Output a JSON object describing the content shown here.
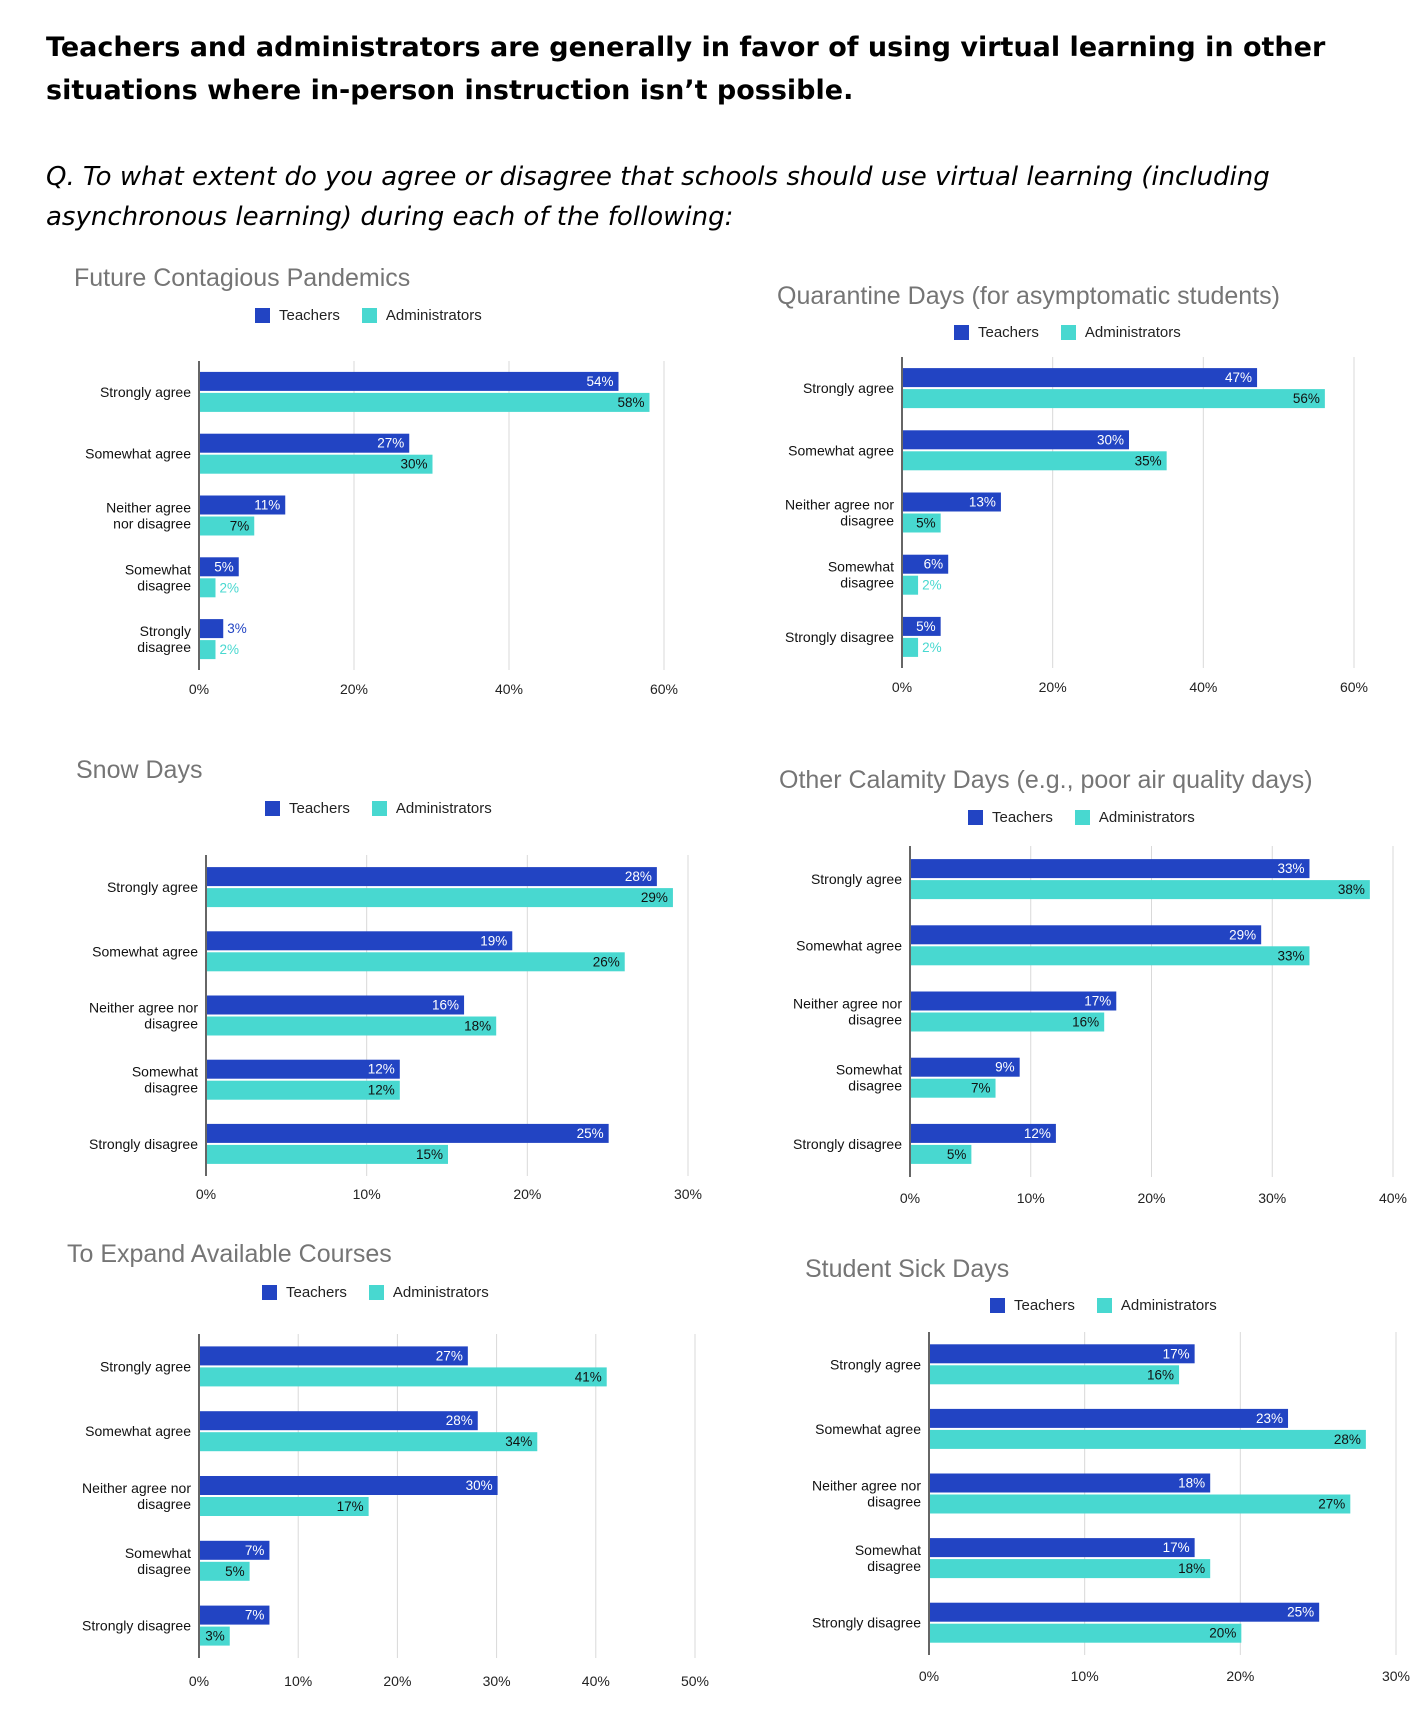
{
  "headline": "Teachers and administrators are generally in favor of using virtual learning in other situations where in-person instruction isn’t possible.",
  "question": "Q. To what extent do you agree or disagree that schools should use virtual learning (including asynchronous learning) during each of the following:",
  "colors": {
    "teachers": "#2244c3",
    "administrators": "#48d8d0",
    "grid": "#d9d9d9",
    "axis": "#333333"
  },
  "chart_data": [
    {
      "type": "bar",
      "orientation": "horizontal",
      "title": "Future Contagious Pandemics",
      "categories": [
        "Strongly agree",
        "Somewhat agree",
        "Neither agree nor disagree",
        "Somewhat disagree",
        "Strongly disagree"
      ],
      "category_lines": [
        [
          "Strongly agree"
        ],
        [
          "Somewhat agree"
        ],
        [
          "Neither agree",
          "nor disagree"
        ],
        [
          "Somewhat",
          "disagree"
        ],
        [
          "Strongly",
          "disagree"
        ]
      ],
      "series": [
        {
          "name": "Teachers",
          "values": [
            54,
            27,
            11,
            5,
            3
          ],
          "labels": [
            "54%",
            "27%",
            "11%",
            "5%",
            "3%"
          ]
        },
        {
          "name": "Administrators",
          "values": [
            58,
            30,
            7,
            2,
            2
          ],
          "labels": [
            "58%",
            "30%",
            "7%",
            "2%",
            "2%"
          ]
        }
      ],
      "xlim": [
        0,
        60
      ],
      "ticks": [
        0,
        20,
        40,
        60
      ],
      "tick_labels": [
        "0%",
        "20%",
        "40%",
        "60%"
      ],
      "legend": "top",
      "grid": true
    },
    {
      "type": "bar",
      "orientation": "horizontal",
      "title": "Quarantine Days (for asymptomatic students)",
      "categories": [
        "Strongly agree",
        "Somewhat agree",
        "Neither agree nor disagree",
        "Somewhat disagree",
        "Strongly disagree"
      ],
      "category_lines": [
        [
          "Strongly agree"
        ],
        [
          "Somewhat agree"
        ],
        [
          "Neither agree nor",
          "disagree"
        ],
        [
          "Somewhat",
          "disagree"
        ],
        [
          "Strongly disagree"
        ]
      ],
      "series": [
        {
          "name": "Teachers",
          "values": [
            47,
            30,
            13,
            6,
            5
          ],
          "labels": [
            "47%",
            "30%",
            "13%",
            "6%",
            "5%"
          ]
        },
        {
          "name": "Administrators",
          "values": [
            56,
            35,
            5,
            2,
            2
          ],
          "labels": [
            "56%",
            "35%",
            "5%",
            "2%",
            "2%"
          ]
        }
      ],
      "xlim": [
        0,
        60
      ],
      "ticks": [
        0,
        20,
        40,
        60
      ],
      "tick_labels": [
        "0%",
        "20%",
        "40%",
        "60%"
      ],
      "legend": "top",
      "grid": true
    },
    {
      "type": "bar",
      "orientation": "horizontal",
      "title": "Snow Days",
      "categories": [
        "Strongly agree",
        "Somewhat agree",
        "Neither agree nor disagree",
        "Somewhat disagree",
        "Strongly disagree"
      ],
      "category_lines": [
        [
          "Strongly agree"
        ],
        [
          "Somewhat agree"
        ],
        [
          "Neither agree nor",
          "disagree"
        ],
        [
          "Somewhat",
          "disagree"
        ],
        [
          "Strongly disagree"
        ]
      ],
      "series": [
        {
          "name": "Teachers",
          "values": [
            28,
            19,
            16,
            12,
            25
          ],
          "labels": [
            "28%",
            "19%",
            "16%",
            "12%",
            "25%"
          ]
        },
        {
          "name": "Administrators",
          "values": [
            29,
            26,
            18,
            12,
            15
          ],
          "labels": [
            "29%",
            "26%",
            "18%",
            "12%",
            "15%"
          ]
        }
      ],
      "xlim": [
        0,
        30
      ],
      "ticks": [
        0,
        10,
        20,
        30
      ],
      "tick_labels": [
        "0%",
        "10%",
        "20%",
        "30%"
      ],
      "legend": "top",
      "grid": true
    },
    {
      "type": "bar",
      "orientation": "horizontal",
      "title": "Other Calamity Days (e.g., poor air quality days)",
      "categories": [
        "Strongly agree",
        "Somewhat agree",
        "Neither agree nor disagree",
        "Somewhat disagree",
        "Strongly disagree"
      ],
      "category_lines": [
        [
          "Strongly agree"
        ],
        [
          "Somewhat agree"
        ],
        [
          "Neither agree nor",
          "disagree"
        ],
        [
          "Somewhat",
          "disagree"
        ],
        [
          "Strongly disagree"
        ]
      ],
      "series": [
        {
          "name": "Teachers",
          "values": [
            33,
            29,
            17,
            9,
            12
          ],
          "labels": [
            "33%",
            "29%",
            "17%",
            "9%",
            "12%"
          ]
        },
        {
          "name": "Administrators",
          "values": [
            38,
            33,
            16,
            7,
            5
          ],
          "labels": [
            "38%",
            "33%",
            "16%",
            "7%",
            "5%"
          ]
        }
      ],
      "xlim": [
        0,
        40
      ],
      "ticks": [
        0,
        10,
        20,
        30,
        40
      ],
      "tick_labels": [
        "0%",
        "10%",
        "20%",
        "30%",
        "40%"
      ],
      "legend": "top",
      "grid": true
    },
    {
      "type": "bar",
      "orientation": "horizontal",
      "title": "To Expand Available Courses",
      "categories": [
        "Strongly agree",
        "Somewhat agree",
        "Neither agree nor disagree",
        "Somewhat disagree",
        "Strongly disagree"
      ],
      "category_lines": [
        [
          "Strongly agree"
        ],
        [
          "Somewhat agree"
        ],
        [
          "Neither agree nor",
          "disagree"
        ],
        [
          "Somewhat",
          "disagree"
        ],
        [
          "Strongly disagree"
        ]
      ],
      "series": [
        {
          "name": "Teachers",
          "values": [
            27,
            28,
            30,
            7,
            7
          ],
          "labels": [
            "27%",
            "28%",
            "30%",
            "7%",
            "7%"
          ]
        },
        {
          "name": "Administrators",
          "values": [
            41,
            34,
            17,
            5,
            3
          ],
          "labels": [
            "41%",
            "34%",
            "17%",
            "5%",
            "3%"
          ]
        }
      ],
      "xlim": [
        0,
        50
      ],
      "ticks": [
        0,
        10,
        20,
        30,
        40,
        50
      ],
      "tick_labels": [
        "0%",
        "10%",
        "20%",
        "30%",
        "40%",
        "50%"
      ],
      "legend": "top",
      "grid": true
    },
    {
      "type": "bar",
      "orientation": "horizontal",
      "title": "Student Sick Days",
      "categories": [
        "Strongly agree",
        "Somewhat agree",
        "Neither agree nor disagree",
        "Somewhat disagree",
        "Strongly disagree"
      ],
      "category_lines": [
        [
          "Strongly agree"
        ],
        [
          "Somewhat agree"
        ],
        [
          "Neither agree nor",
          "disagree"
        ],
        [
          "Somewhat",
          "disagree"
        ],
        [
          "Strongly disagree"
        ]
      ],
      "series": [
        {
          "name": "Teachers",
          "values": [
            17,
            23,
            18,
            17,
            25
          ],
          "labels": [
            "17%",
            "23%",
            "18%",
            "17%",
            "25%"
          ]
        },
        {
          "name": "Administrators",
          "values": [
            16,
            28,
            27,
            18,
            20
          ],
          "labels": [
            "16%",
            "28%",
            "27%",
            "18%",
            "20%"
          ]
        }
      ],
      "xlim": [
        0,
        30
      ],
      "ticks": [
        0,
        10,
        20,
        30
      ],
      "tick_labels": [
        "0%",
        "10%",
        "20%",
        "30%"
      ],
      "legend": "top",
      "grid": true
    }
  ]
}
